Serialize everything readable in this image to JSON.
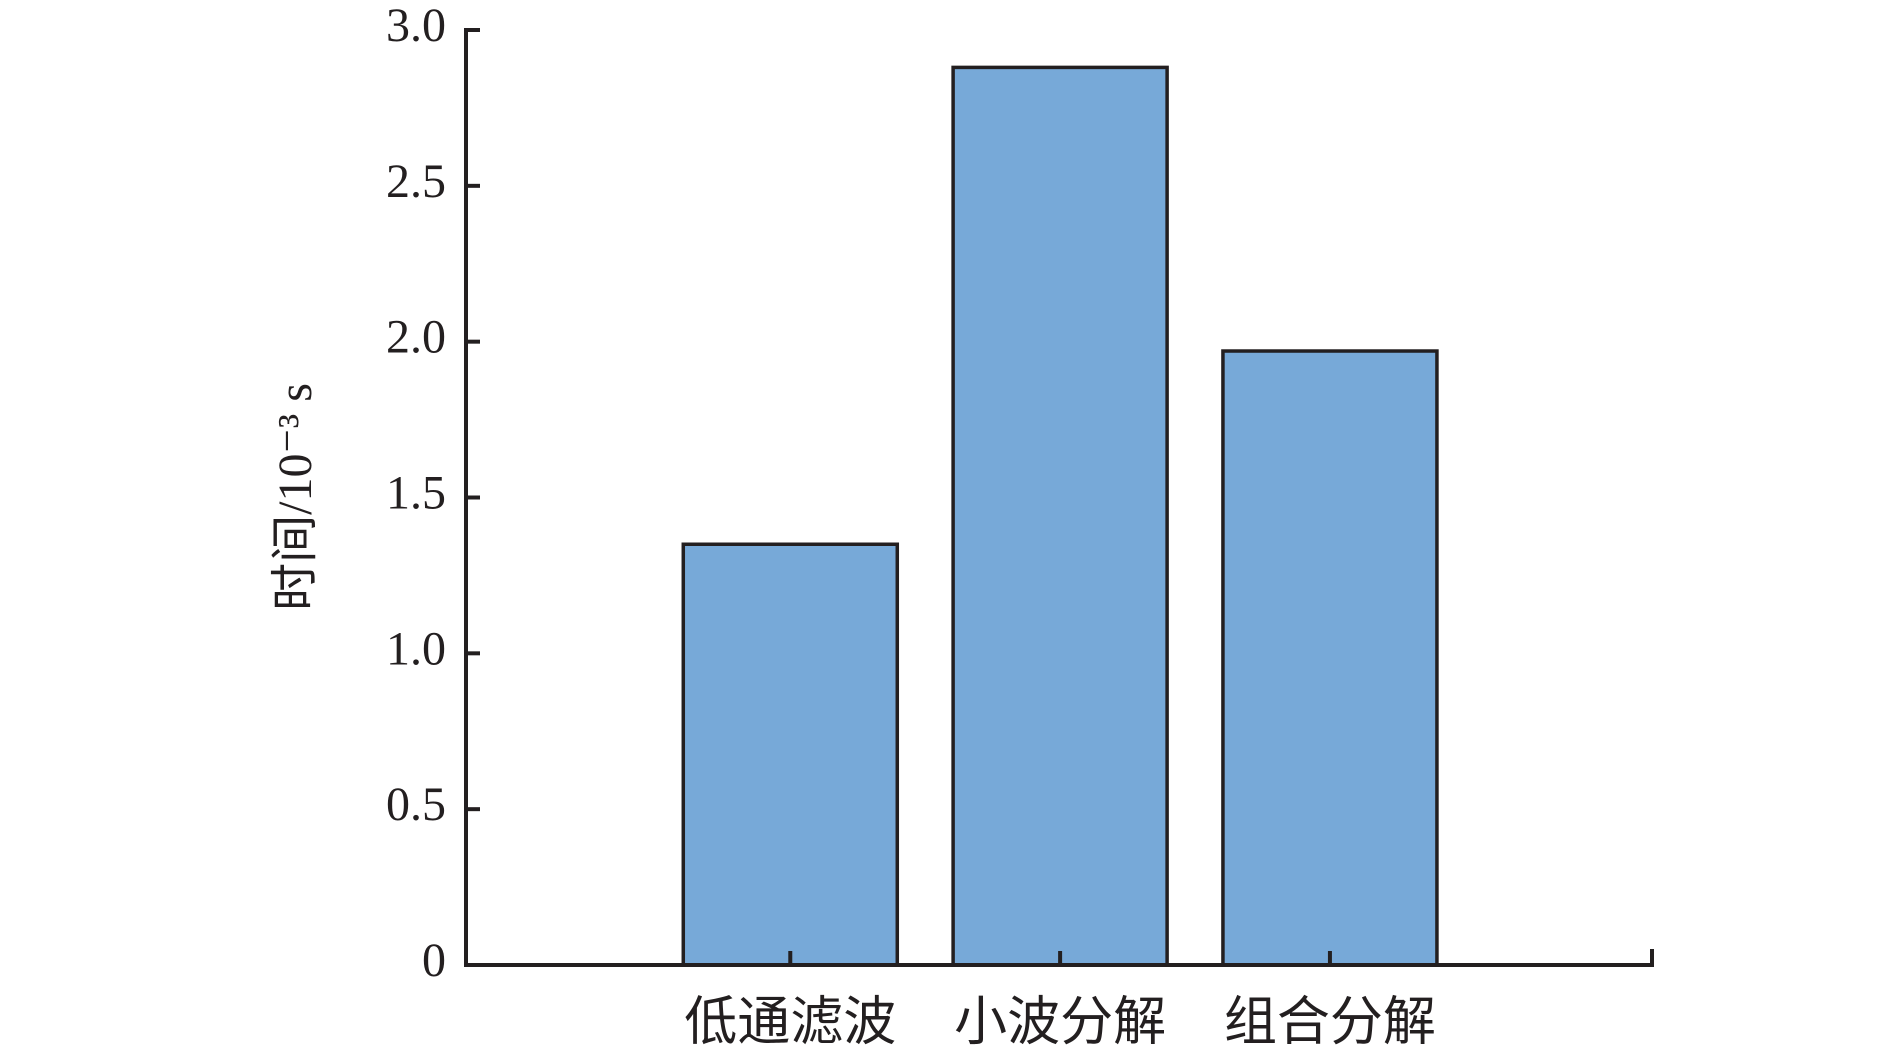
{
  "chart_data": {
    "type": "bar",
    "y_label": "时间/10⁻³ s",
    "categories": [
      "低通滤波",
      "小波分解",
      "组合分解"
    ],
    "values": [
      1.35,
      2.88,
      1.97
    ],
    "color": "#77a9d8",
    "ylim": [
      0,
      3.0
    ],
    "yticks": [
      0,
      0.5,
      {
        "value": 1.0,
        "label": "1.0"
      },
      1.5,
      {
        "value": 2.0,
        "label": "2.0"
      },
      2.5,
      {
        "value": 3.0,
        "label": "3.0"
      }
    ]
  }
}
